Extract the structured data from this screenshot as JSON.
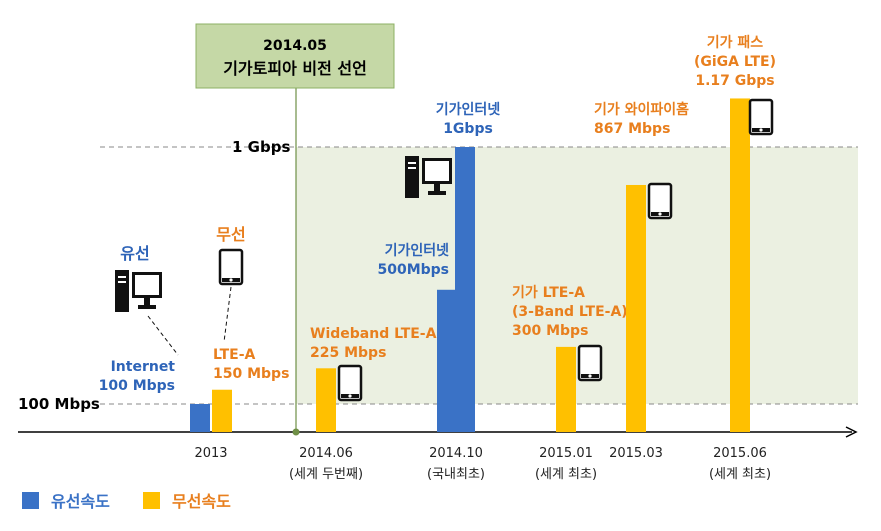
{
  "chart_data": {
    "type": "bar",
    "y_ticks": [
      {
        "value": 100,
        "label": "100 Mbps"
      },
      {
        "value": 1000,
        "label": "1 Gbps"
      }
    ],
    "callout": {
      "line1": "2014.05",
      "line2": "기가토피아 비전 선언"
    },
    "x_ticks": [
      {
        "line1": "2013",
        "line2": ""
      },
      {
        "line1": "2014.06",
        "line2": "(세계 두번째)"
      },
      {
        "line1": "2014.10",
        "line2": "(국내최초)"
      },
      {
        "line1": "2015.01",
        "line2": "(세계 최초)"
      },
      {
        "line1": "2015.03",
        "line2": ""
      },
      {
        "line1": "2015.06",
        "line2": "(세계 최초)"
      }
    ],
    "series": [
      {
        "name": "유선속도",
        "color": "#3a72c6"
      },
      {
        "name": "무선속도",
        "color": "#ffc000"
      }
    ],
    "bars": [
      {
        "series": 0,
        "tick": 0,
        "value": 100,
        "lines": [
          "Internet",
          "100 Mbps"
        ]
      },
      {
        "series": 1,
        "tick": 0,
        "value": 150,
        "lines": [
          "LTE-A",
          "150 Mbps"
        ]
      },
      {
        "series": 1,
        "tick": 1,
        "value": 225,
        "lines": [
          "Wideband LTE-A",
          "225 Mbps"
        ]
      },
      {
        "series": 0,
        "tick": 2,
        "value": 500,
        "lines": [
          "기가인터넷",
          "500Mbps"
        ]
      },
      {
        "series": 0,
        "tick": 2,
        "value": 1000,
        "lines": [
          "기가인터넷",
          "1Gbps"
        ]
      },
      {
        "series": 1,
        "tick": 3,
        "value": 300,
        "lines": [
          "기가 LTE-A",
          "(3-Band LTE-A)",
          "300 Mbps"
        ]
      },
      {
        "series": 1,
        "tick": 4,
        "value": 867,
        "lines": [
          "기가 와이파이홈",
          "867 Mbps"
        ]
      },
      {
        "series": 1,
        "tick": 5,
        "value": 1170,
        "lines": [
          "기가 패스",
          "(GiGA LTE)",
          "1.17 Gbps"
        ]
      }
    ],
    "group_labels": [
      {
        "text": "유선",
        "series": 0
      },
      {
        "text": "무선",
        "series": 1
      }
    ],
    "colors": {
      "band": "#ebf0e1",
      "callout_bg": "#c5d8a6",
      "callout_border": "#8db064",
      "axis": "#000000",
      "text_dark": "#000000"
    },
    "legend_placement": "bottom-left"
  }
}
